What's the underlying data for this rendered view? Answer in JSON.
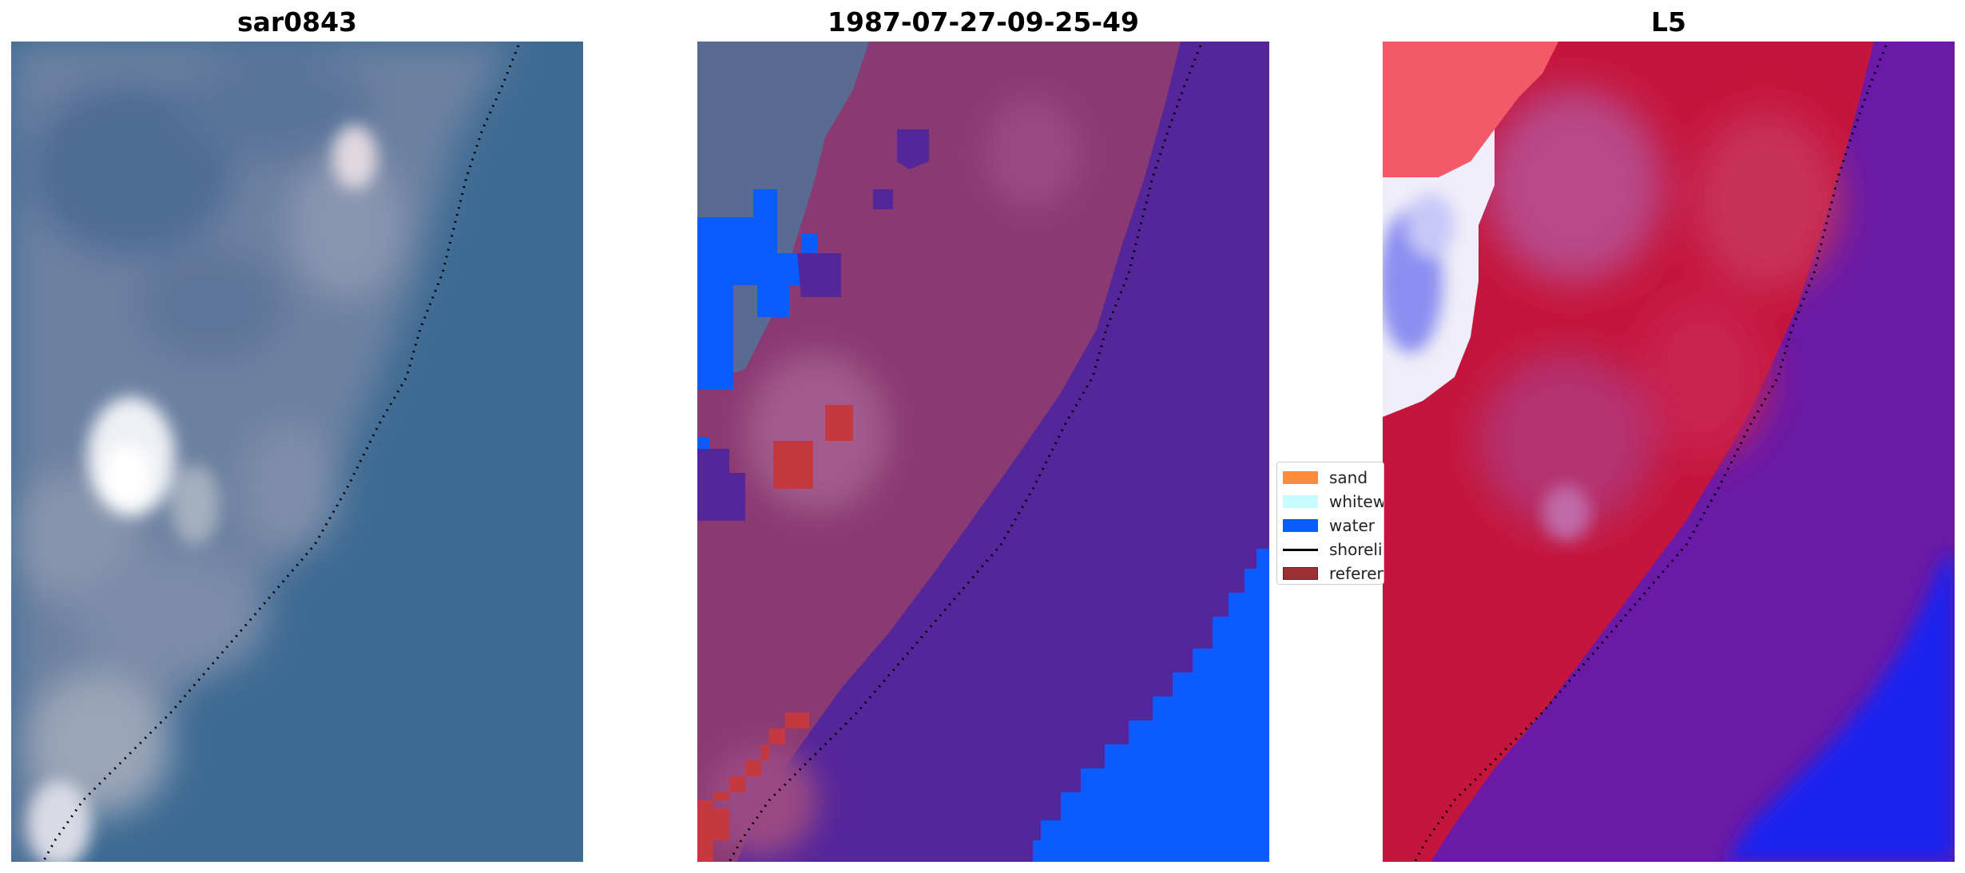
{
  "panels": [
    {
      "title": "sar0843"
    },
    {
      "title": "1987-07-27-09-25-49"
    },
    {
      "title": "L5"
    }
  ],
  "legend": {
    "items": [
      {
        "label": "sand",
        "color": "#ff8c3a",
        "kind": "patch"
      },
      {
        "label": "whitewater",
        "color": "#c8fbff",
        "kind": "patch"
      },
      {
        "label": "water",
        "color": "#0a5cff",
        "kind": "patch"
      },
      {
        "label": "shoreline",
        "color": "#000000",
        "kind": "line"
      },
      {
        "label": "reference shoreline",
        "color": "#9b2f32",
        "kind": "patch"
      }
    ]
  },
  "colors": {
    "rgb_water": "#3a6690",
    "rgb_land": "#7a8aa4",
    "classified_land": "#8a3a72",
    "classified_water": "#55269a",
    "classified_class_water": "#0a5cff",
    "classified_sand_red": "#c4383f",
    "index_red": "#c4163c",
    "index_purple": "#6a1aa6",
    "index_blue": "#1f22ee"
  }
}
